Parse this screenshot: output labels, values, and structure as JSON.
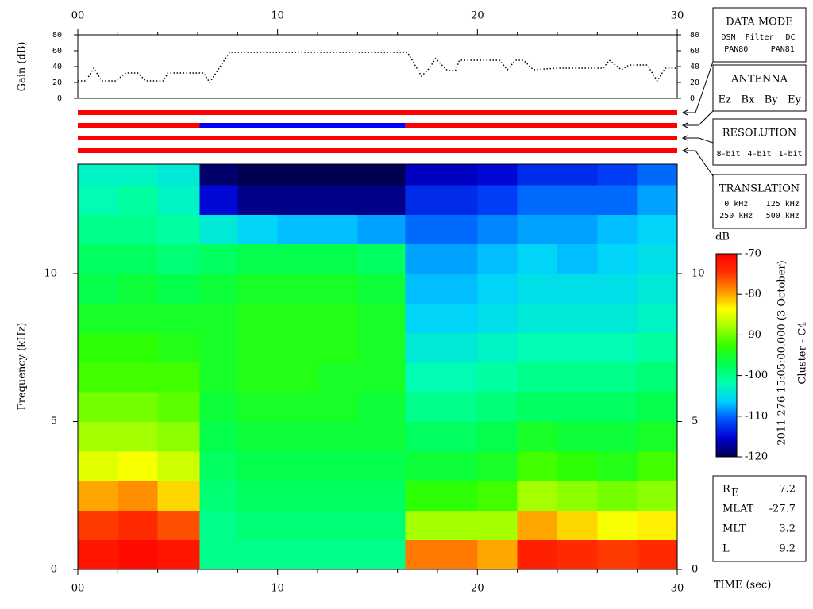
{
  "chart_data": [
    {
      "type": "line",
      "ylabel": "Gain (dB)",
      "color": "#000000",
      "x": [
        0,
        0.4,
        0.8,
        1.2,
        1.9,
        2.4,
        3.0,
        3.4,
        4.3,
        4.5,
        6.3,
        6.6,
        7.6,
        16.5,
        17.2,
        17.6,
        17.9,
        18.5,
        18.9,
        19.1,
        21.1,
        21.5,
        21.9,
        22.3,
        22.8,
        24.0,
        26.3,
        26.6,
        27.2,
        27.6,
        28.5,
        29.0,
        29.4,
        30
      ],
      "values": [
        22,
        22,
        38,
        22,
        22,
        32,
        32,
        22,
        22,
        32,
        32,
        20,
        58,
        58,
        28,
        38,
        50,
        35,
        35,
        48,
        48,
        36,
        48,
        48,
        36,
        38,
        38,
        48,
        36,
        42,
        42,
        22,
        38,
        38
      ],
      "xlim": [
        0,
        30
      ],
      "xticks": [
        {
          "value": 0,
          "label": "00"
        },
        10,
        20,
        30
      ],
      "xminorticks": [
        2,
        4,
        6,
        8,
        12,
        14,
        16,
        18,
        22,
        24,
        26,
        28
      ],
      "ylim": [
        0,
        80
      ],
      "yticks": [
        0,
        20,
        40,
        60,
        80
      ]
    },
    {
      "type": "timeline",
      "xlim": [
        0,
        30
      ],
      "rows": [
        {
          "segments": [
            {
              "start": 0,
              "end": 30,
              "color": "#ff0000"
            }
          ]
        },
        {
          "segments": [
            {
              "start": 0,
              "end": 6.1,
              "color": "#ff0000"
            },
            {
              "start": 6.1,
              "end": 16.4,
              "color": "#0000ff"
            },
            {
              "start": 16.4,
              "end": 30,
              "color": "#ff0000"
            }
          ]
        },
        {
          "segments": [
            {
              "start": 0,
              "end": 30,
              "color": "#ff0000"
            }
          ]
        },
        {
          "segments": [
            {
              "start": 0,
              "end": 30,
              "color": "#ff0000"
            }
          ]
        }
      ]
    },
    {
      "type": "heatmap",
      "ylabel": "Frequency (kHz)",
      "xlabel": "TIME (sec)",
      "x": [
        0,
        2,
        4,
        6.1,
        8,
        10,
        12,
        14,
        16.4,
        18,
        20,
        22,
        24,
        26,
        28,
        30
      ],
      "y": [
        0,
        1,
        2,
        3,
        4,
        5,
        6,
        7,
        8,
        9,
        10,
        11,
        12,
        13,
        13.7
      ],
      "z": [
        [
          -72,
          -75,
          -80,
          -85,
          -88,
          -90,
          -92,
          -93,
          -95,
          -97,
          -98,
          -100,
          -102,
          -103
        ],
        [
          -71,
          -74,
          -79,
          -84,
          -88,
          -90,
          -92,
          -93,
          -95,
          -96,
          -98,
          -100,
          -101,
          -103
        ],
        [
          -72,
          -76,
          -82,
          -86,
          -89,
          -91,
          -92,
          -94,
          -95,
          -97,
          -99,
          -101,
          -103,
          -104
        ],
        [
          -100,
          -100,
          -99,
          -98,
          -97,
          -96,
          -95,
          -95,
          -95,
          -96,
          -98,
          -104,
          -115,
          -119
        ],
        [
          -100,
          -99,
          -98,
          -97,
          -96,
          -95,
          -94,
          -94,
          -94,
          -95,
          -97,
          -106,
          -118,
          -120
        ],
        [
          -100,
          -99,
          -98,
          -97,
          -96,
          -95,
          -94,
          -94,
          -94,
          -95,
          -97,
          -107,
          -118,
          -120
        ],
        [
          -100,
          -99,
          -98,
          -97,
          -96,
          -95,
          -95,
          -94,
          -94,
          -95,
          -97,
          -107,
          -118,
          -120
        ],
        [
          -100,
          -99,
          -98,
          -97,
          -96,
          -96,
          -95,
          -95,
          -95,
          -96,
          -98,
          -108,
          -118,
          -120
        ],
        [
          -78,
          -88,
          -93,
          -96,
          -98,
          -100,
          -102,
          -104,
          -106,
          -107,
          -108,
          -110,
          -113,
          -116
        ],
        [
          -78,
          -88,
          -93,
          -96,
          -98,
          -100,
          -102,
          -104,
          -106,
          -107,
          -108,
          -110,
          -113,
          -116
        ],
        [
          -80,
          -88,
          -92,
          -95,
          -97,
          -99,
          -101,
          -103,
          -105,
          -106,
          -107,
          -109,
          -112,
          -115
        ],
        [
          -73,
          -80,
          -88,
          -92,
          -95,
          -98,
          -100,
          -102,
          -104,
          -105,
          -106,
          -108,
          -110,
          -113
        ],
        [
          -74,
          -82,
          -89,
          -93,
          -96,
          -98,
          -100,
          -102,
          -104,
          -105,
          -107,
          -108,
          -110,
          -113
        ],
        [
          -75,
          -84,
          -90,
          -94,
          -96,
          -98,
          -100,
          -102,
          -104,
          -105,
          -106,
          -107,
          -110,
          -112
        ],
        [
          -74,
          -83,
          -89,
          -92,
          -95,
          -97,
          -99,
          -101,
          -103,
          -104,
          -105,
          -106,
          -108,
          -110
        ]
      ],
      "xlim": [
        0,
        30
      ],
      "xticks": [
        {
          "value": 0,
          "label": "00"
        },
        10,
        20,
        30
      ],
      "xminorticks": [
        2,
        4,
        6,
        8,
        12,
        14,
        16,
        18,
        22,
        24,
        26,
        28
      ],
      "ylim": [
        0,
        13.7
      ],
      "yticks": [
        0,
        5,
        10
      ],
      "colorbar": {
        "label": "dB",
        "zlim": [
          -120,
          -70
        ],
        "ticks": [
          -70,
          -80,
          -90,
          -100,
          -110,
          -120
        ],
        "colors": [
          "#000050",
          "#0000d0",
          "#0050ff",
          "#00d0ff",
          "#00ffb0",
          "#00ff50",
          "#30ff00",
          "#a0ff00",
          "#ffff00",
          "#ff9000",
          "#ff3000",
          "#ff0000"
        ]
      },
      "annotations": [
        "2011 276 15:05:00.000 (3 October)",
        "Cluster - C4"
      ]
    }
  ],
  "panels": [
    {
      "title": "DATA MODE",
      "rows": [
        [
          {
            "text": "DSN",
            "color": "#ff0000"
          },
          {
            "text": "Filter",
            "color": "#00c000"
          },
          {
            "text": "DC",
            "color": "#0000ff"
          }
        ],
        [
          {
            "text": "PAN80",
            "color": "#000000"
          },
          {
            "text": "PAN81",
            "color": "#00c8c8"
          }
        ]
      ]
    },
    {
      "title": "ANTENNA",
      "rows": [
        [
          {
            "text": "Ez",
            "color": "#ff0000"
          },
          {
            "text": "Bx",
            "color": "#00c000"
          },
          {
            "text": "By",
            "color": "#0000ff"
          },
          {
            "text": "Ey",
            "color": "#000000"
          }
        ]
      ]
    },
    {
      "title": "RESOLUTION",
      "rows": [
        [
          {
            "text": "8-bit",
            "color": "#ff0000"
          },
          {
            "text": "4-bit",
            "color": "#00c000"
          },
          {
            "text": "1-bit",
            "color": "#0000ff"
          }
        ]
      ]
    },
    {
      "title": "TRANSLATION",
      "rows": [
        [
          {
            "text": "0 kHz",
            "color": "#ff0000"
          },
          {
            "text": "125 kHz",
            "color": "#00c000"
          }
        ],
        [
          {
            "text": "250 kHz",
            "color": "#0000ff"
          },
          {
            "text": "500 kHz",
            "color": "#000000"
          }
        ]
      ]
    }
  ],
  "info": {
    "rows": [
      {
        "label": "R",
        "sub": "E",
        "value": 7.2
      },
      {
        "label": "MLAT",
        "value": -27.7
      },
      {
        "label": "MLT",
        "value": 3.2
      },
      {
        "label": "L",
        "value": 9.2
      }
    ]
  }
}
